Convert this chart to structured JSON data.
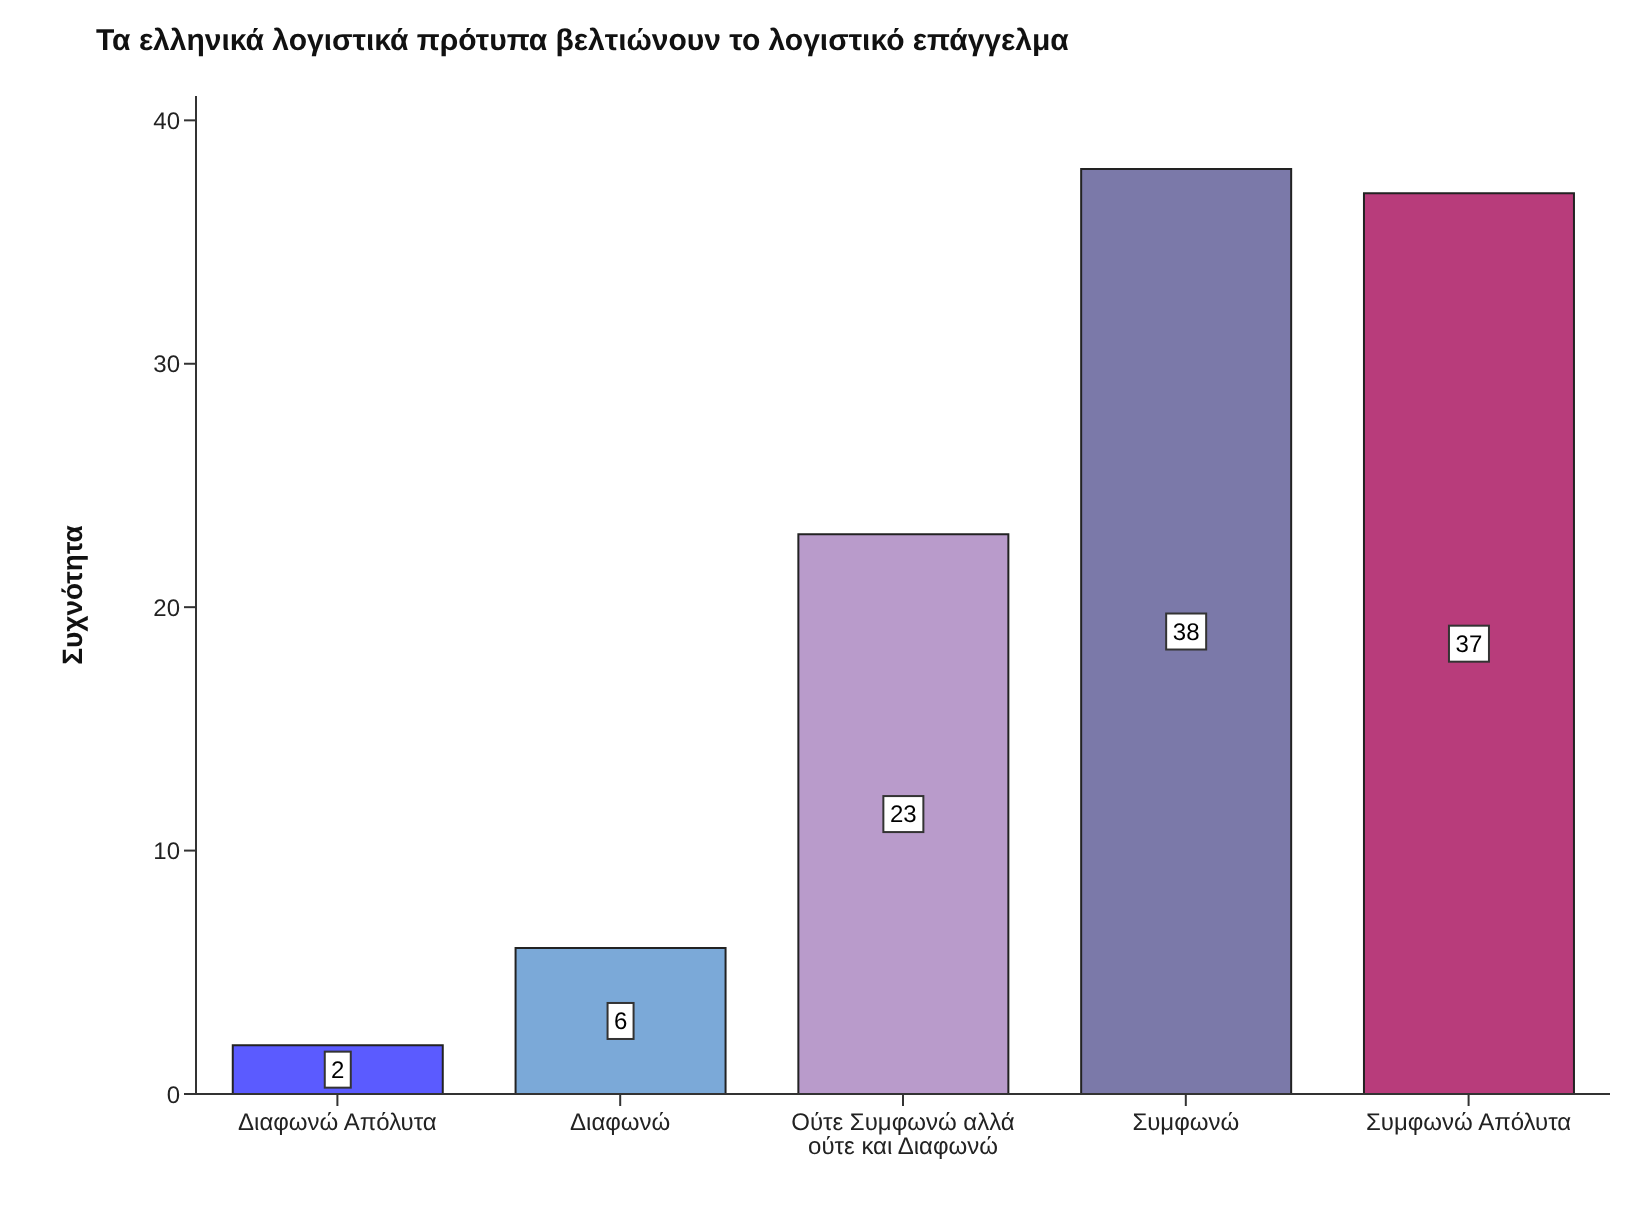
{
  "chart_data": {
    "type": "bar",
    "title": "Τα ελληνικά λογιστικά πρότυπα βελτιώνουν το λογιστικό επάγγελμα",
    "ylabel": "Συχνότητα",
    "categories": [
      "Διαφωνώ Απόλυτα",
      "Διαφωνώ",
      "Ούτε Συμφωνώ αλλά ούτε και Διαφωνώ",
      "Συμφωνώ",
      "Συμφωνώ Απόλυτα"
    ],
    "values": [
      2,
      6,
      23,
      38,
      37
    ],
    "colors": [
      "#5b5bff",
      "#7ba9d8",
      "#b99bcb",
      "#7b79a9",
      "#b83c7b"
    ],
    "ylim": [
      0,
      41
    ],
    "yticks": [
      0,
      10,
      20,
      30,
      40
    ],
    "data_labels": true
  }
}
